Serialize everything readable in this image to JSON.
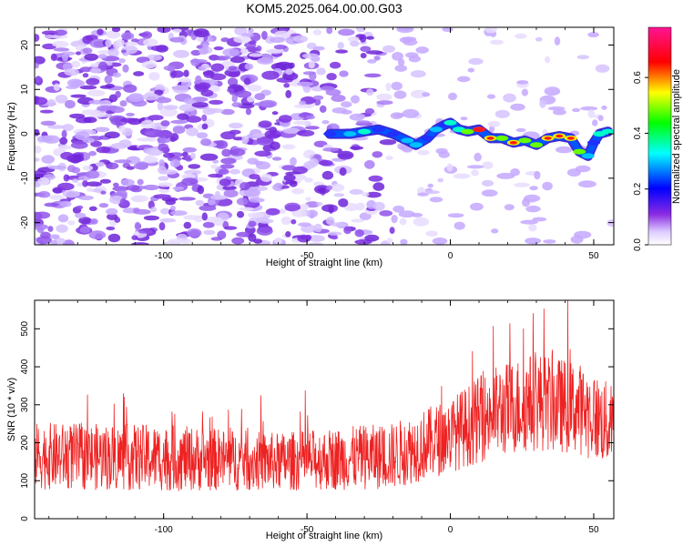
{
  "title": "KOM5.2025.064.00.00.G03",
  "chart_data": [
    {
      "type": "heatmap",
      "xlabel": "Height of straight line (km)",
      "ylabel": "Frequency (Hz)",
      "xlim": [
        -145,
        57
      ],
      "ylim": [
        -25,
        24
      ],
      "xticks": [
        -100,
        -50,
        0,
        50
      ],
      "yticks": [
        -20,
        -10,
        0,
        10,
        20
      ],
      "colorbar": {
        "label": "Normalized spectral amplitude",
        "range": [
          0.0,
          0.78
        ],
        "ticks": [
          0.0,
          0.2,
          0.4,
          0.6
        ],
        "tick_labels": [
          "0.0",
          "0.2",
          "0.4",
          "0.6"
        ],
        "colors": [
          "#ffffff",
          "#8a2be2",
          "#0000ff",
          "#00ffff",
          "#00ff00",
          "#ffff00",
          "#ff0000",
          "#ff00ff"
        ]
      },
      "signal_track": {
        "x": [
          -42,
          -35,
          -30,
          -25,
          -20,
          -15,
          -12,
          -8,
          -5,
          -2,
          0,
          3,
          6,
          10,
          14,
          18,
          22,
          26,
          30,
          34,
          38,
          42,
          45,
          48,
          50,
          52,
          55
        ],
        "y": [
          0,
          0,
          0.5,
          1,
          0,
          -1.5,
          -2.5,
          -1,
          1,
          2,
          2.5,
          1,
          0.5,
          1,
          -1,
          -1,
          -2,
          -1.5,
          -2.5,
          -1,
          -0.5,
          -1,
          -4,
          -5,
          -2,
          0,
          0.5
        ],
        "amplitude": [
          0.35,
          0.4,
          0.45,
          0.35,
          0.35,
          0.4,
          0.42,
          0.3,
          0.4,
          0.35,
          0.45,
          0.5,
          0.55,
          0.7,
          0.6,
          0.55,
          0.62,
          0.58,
          0.55,
          0.6,
          0.65,
          0.65,
          0.55,
          0.4,
          0.35,
          0.45,
          0.5
        ]
      }
    },
    {
      "type": "line",
      "xlabel": "Height of straight line (km)",
      "ylabel": "SNR (10 * v/v)",
      "xlim": [
        -145,
        57
      ],
      "ylim": [
        0,
        575
      ],
      "xticks": [
        -100,
        -50,
        0,
        50
      ],
      "yticks": [
        0,
        100,
        200,
        300,
        400,
        500
      ],
      "color": "#ee2222",
      "trend": {
        "x": [
          -145,
          -100,
          -60,
          -20,
          0,
          15,
          30,
          45,
          57
        ],
        "mean": [
          165,
          160,
          150,
          165,
          220,
          280,
          310,
          290,
          240
        ],
        "spread": [
          80,
          80,
          70,
          80,
          90,
          110,
          120,
          110,
          100
        ]
      }
    }
  ]
}
